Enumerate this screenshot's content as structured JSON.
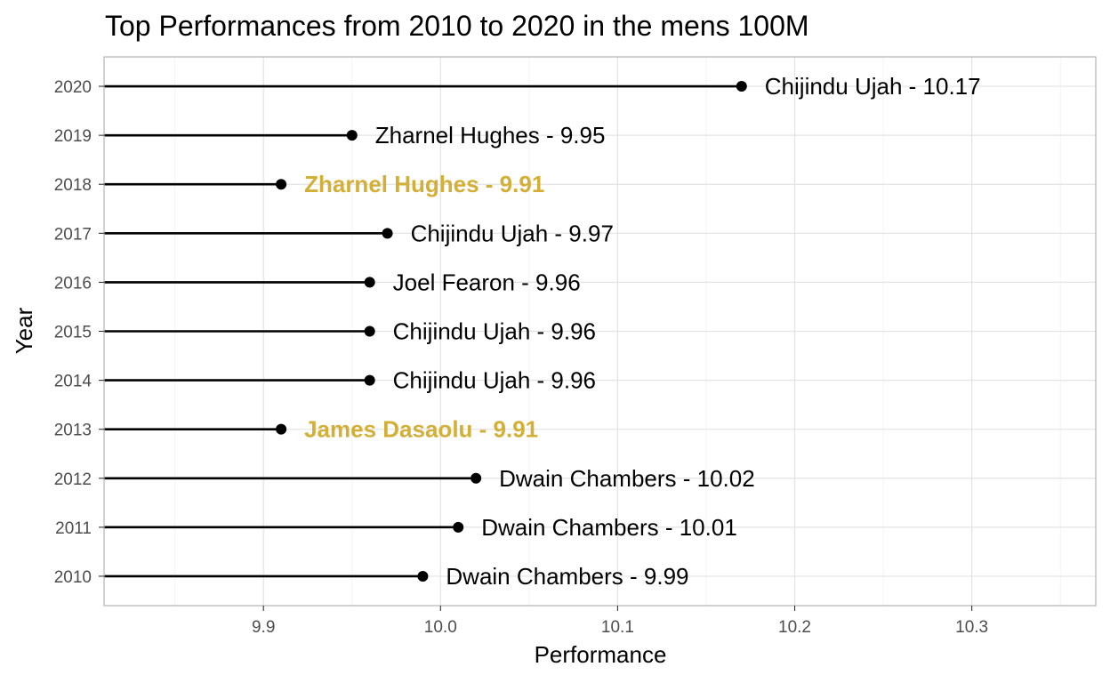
{
  "chart_data": {
    "type": "lollipop",
    "title": "Top Performances from 2010 to 2020 in the mens 100M",
    "xlabel": "Performance",
    "ylabel": "Year",
    "xlim": [
      9.81,
      10.37
    ],
    "x_ticks": [
      9.9,
      10.0,
      10.1,
      10.2,
      10.3
    ],
    "x_tick_labels": [
      "9.9",
      "10.0",
      "10.1",
      "10.2",
      "10.3"
    ],
    "grid": true,
    "colors": {
      "default": "#000000",
      "highlight": "#D4AF37",
      "tick_text": "#4d4d4d"
    },
    "rows": [
      {
        "year": "2010",
        "athlete": "Dwain Chambers",
        "time": 9.99,
        "label": "Dwain Chambers - 9.99",
        "highlight": false
      },
      {
        "year": "2011",
        "athlete": "Dwain Chambers",
        "time": 10.01,
        "label": "Dwain Chambers - 10.01",
        "highlight": false
      },
      {
        "year": "2012",
        "athlete": "Dwain Chambers",
        "time": 10.02,
        "label": "Dwain Chambers - 10.02",
        "highlight": false
      },
      {
        "year": "2013",
        "athlete": "James Dasaolu",
        "time": 9.91,
        "label": "James Dasaolu - 9.91",
        "highlight": true
      },
      {
        "year": "2014",
        "athlete": "Chijindu Ujah",
        "time": 9.96,
        "label": "Chijindu Ujah - 9.96",
        "highlight": false
      },
      {
        "year": "2015",
        "athlete": "Chijindu Ujah",
        "time": 9.96,
        "label": "Chijindu Ujah - 9.96",
        "highlight": false
      },
      {
        "year": "2016",
        "athlete": "Joel Fearon",
        "time": 9.96,
        "label": "Joel Fearon - 9.96",
        "highlight": false
      },
      {
        "year": "2017",
        "athlete": "Chijindu Ujah",
        "time": 9.97,
        "label": "Chijindu Ujah - 9.97",
        "highlight": false
      },
      {
        "year": "2018",
        "athlete": "Zharnel Hughes",
        "time": 9.91,
        "label": "Zharnel Hughes - 9.91",
        "highlight": true
      },
      {
        "year": "2019",
        "athlete": "Zharnel Hughes",
        "time": 9.95,
        "label": "Zharnel Hughes - 9.95",
        "highlight": false
      },
      {
        "year": "2020",
        "athlete": "Chijindu Ujah",
        "time": 10.17,
        "label": "Chijindu Ujah - 10.17",
        "highlight": false
      }
    ]
  }
}
